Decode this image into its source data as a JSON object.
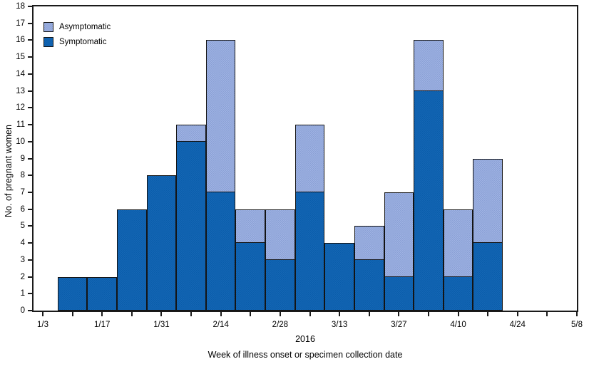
{
  "figure": {
    "background": "#ffffff",
    "frame_color": "#1a1a1a"
  },
  "chart_data": {
    "type": "bar",
    "stacked": true,
    "title": "",
    "xlabel": "Week of illness onset or specimen collection date",
    "ylabel": "No. of pregnant women",
    "year_label": "2016",
    "ylim": [
      0,
      18
    ],
    "y_ticks": [
      0,
      1,
      2,
      3,
      4,
      5,
      6,
      7,
      8,
      9,
      10,
      11,
      12,
      13,
      14,
      15,
      16,
      17,
      18
    ],
    "x_ticks": [
      "1/3",
      "1/10",
      "1/17",
      "1/24",
      "1/31",
      "2/7",
      "2/14",
      "2/21",
      "2/28",
      "3/6",
      "3/13",
      "3/20",
      "3/27",
      "4/3",
      "4/10",
      "4/17",
      "4/24",
      "5/1",
      "5/8"
    ],
    "x_tick_labels_shown": [
      "1/3",
      "1/17",
      "1/31",
      "2/14",
      "2/28",
      "3/13",
      "3/27",
      "4/10",
      "4/24",
      "5/8"
    ],
    "categories": [
      "1/10",
      "1/17",
      "1/24",
      "1/31",
      "2/7",
      "2/14",
      "2/21",
      "2/28",
      "3/6",
      "3/13",
      "3/20",
      "3/27",
      "4/3",
      "4/10",
      "4/17"
    ],
    "series": [
      {
        "name": "Symptomatic",
        "color": "#0f62af",
        "values": [
          2,
          2,
          6,
          8,
          10,
          7,
          4,
          3,
          7,
          4,
          3,
          2,
          13,
          2,
          4
        ]
      },
      {
        "name": "Asymptomatic",
        "color": "#94a9dc",
        "values": [
          0,
          0,
          0,
          0,
          1,
          9,
          2,
          3,
          4,
          0,
          2,
          5,
          3,
          4,
          5
        ]
      }
    ],
    "totals": [
      2,
      2,
      6,
      8,
      11,
      16,
      6,
      6,
      11,
      4,
      5,
      7,
      16,
      6,
      9
    ],
    "legend": [
      {
        "label": "Asymptomatic",
        "color": "#94a9dc"
      },
      {
        "label": "Symptomatic",
        "color": "#0f62af"
      }
    ],
    "legend_position": "top-left-inside",
    "grid": false,
    "bar_border_color": "#141414"
  }
}
